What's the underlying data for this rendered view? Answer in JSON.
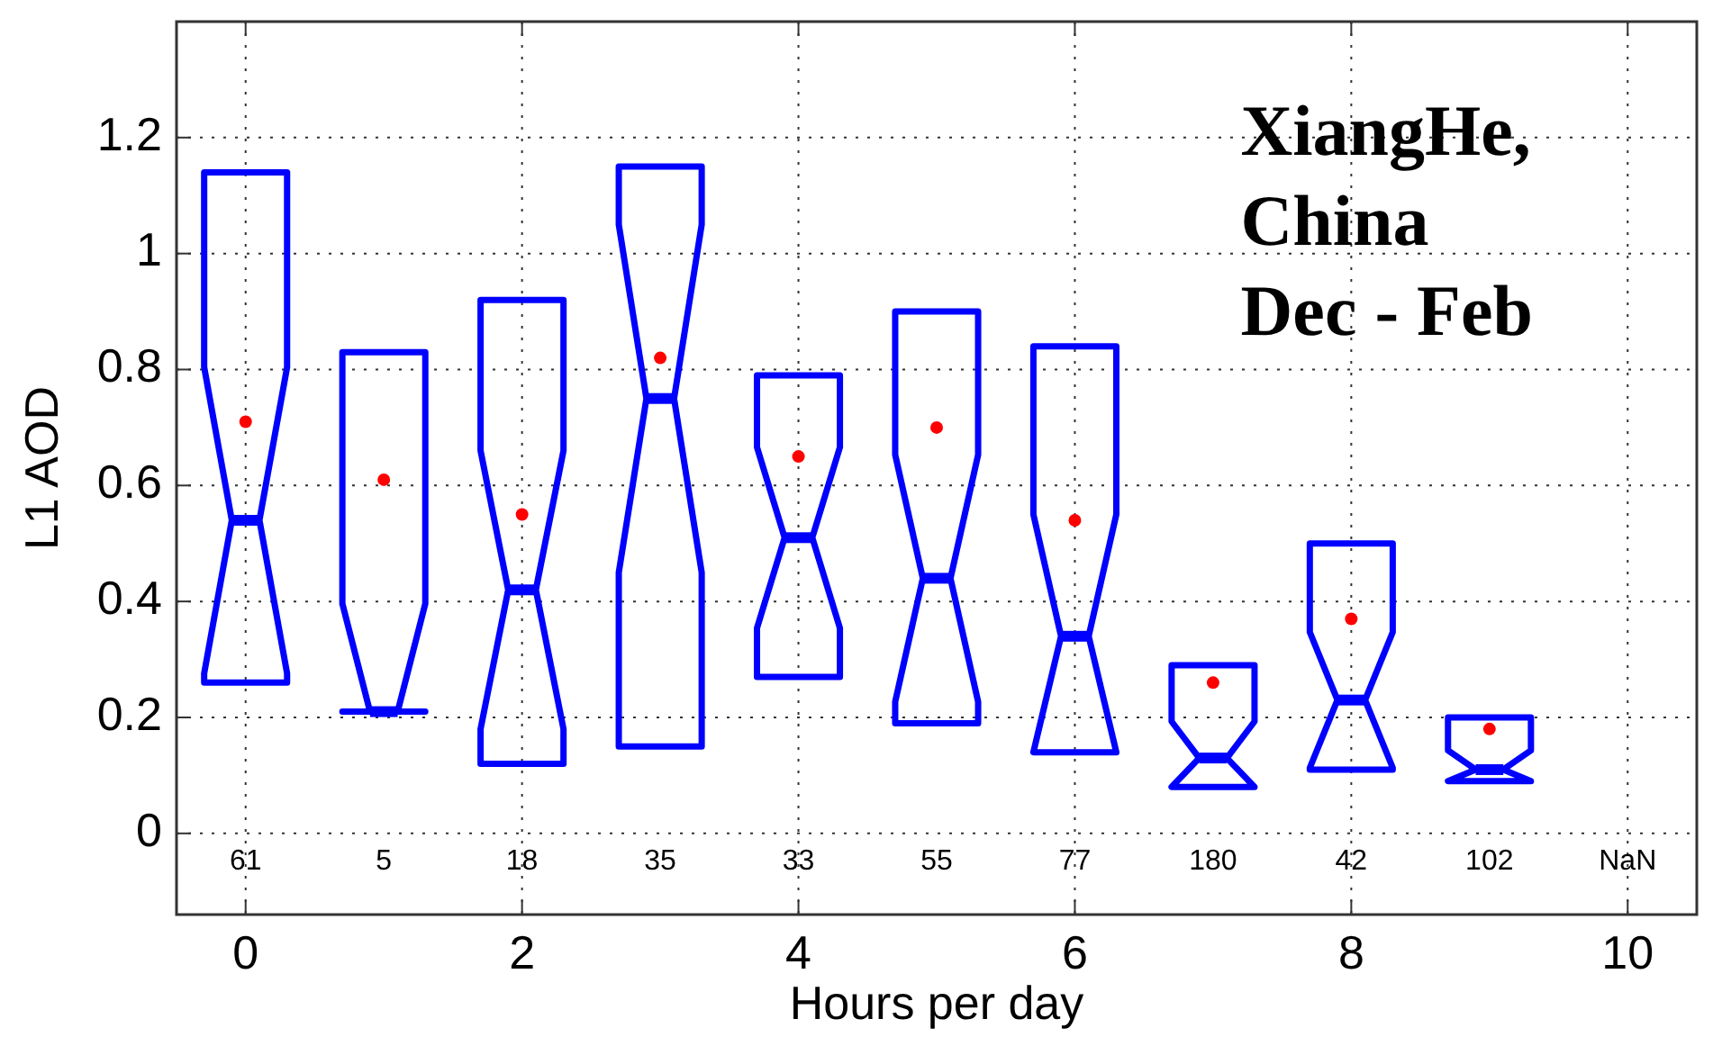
{
  "chart_data": {
    "type": "box",
    "xlabel": "Hours per day",
    "ylabel": "L1 AOD",
    "x": [
      0,
      1,
      2,
      3,
      4,
      5,
      6,
      7,
      8,
      9
    ],
    "color": "#0000ff",
    "boxes": [
      {
        "low": 0.26,
        "q1": 0.26,
        "median": 0.54,
        "q3": 1.14,
        "high": 1.14,
        "mean": 0.71
      },
      {
        "low": 0.21,
        "q1": 0.21,
        "median": 0.21,
        "q3": 0.83,
        "high": 0.83,
        "mean": 0.61
      },
      {
        "low": 0.12,
        "q1": 0.12,
        "median": 0.42,
        "q3": 0.92,
        "high": 0.92,
        "mean": 0.55
      },
      {
        "low": 0.15,
        "q1": 0.15,
        "median": 0.75,
        "q3": 1.15,
        "high": 1.15,
        "mean": 0.82
      },
      {
        "low": 0.27,
        "q1": 0.27,
        "median": 0.51,
        "q3": 0.79,
        "high": 0.79,
        "mean": 0.65
      },
      {
        "low": 0.19,
        "q1": 0.19,
        "median": 0.44,
        "q3": 0.9,
        "high": 0.9,
        "mean": 0.7
      },
      {
        "low": 0.14,
        "q1": 0.14,
        "median": 0.34,
        "q3": 0.84,
        "high": 0.84,
        "mean": 0.54
      },
      {
        "low": 0.08,
        "q1": 0.08,
        "median": 0.13,
        "q3": 0.29,
        "high": 0.29,
        "mean": 0.26
      },
      {
        "low": 0.11,
        "q1": 0.11,
        "median": 0.23,
        "q3": 0.5,
        "high": 0.5,
        "mean": 0.37
      },
      {
        "low": 0.09,
        "q1": 0.09,
        "median": 0.11,
        "q3": 0.2,
        "high": 0.2,
        "mean": 0.18
      }
    ],
    "xlim": [
      -0.5,
      10.5
    ],
    "ylim": [
      -0.14,
      1.4
    ],
    "xticks": [
      0,
      2,
      4,
      6,
      8,
      10
    ],
    "yticks": [
      0,
      0.2,
      0.4,
      0.6,
      0.8,
      1,
      1.2
    ],
    "grid": true,
    "annotations": [
      "XiangHe,\nChina\nDec - Feb",
      "61",
      "5",
      "18",
      "35",
      "33",
      "55",
      "77",
      "180",
      "42",
      "102",
      "NaN"
    ]
  }
}
